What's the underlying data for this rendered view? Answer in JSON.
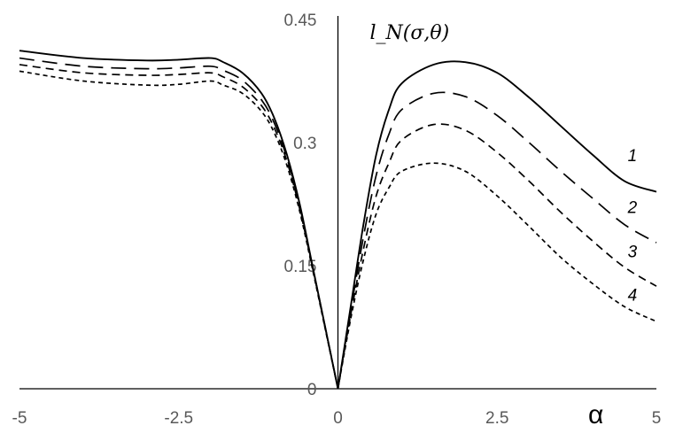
{
  "chart_data": {
    "type": "line",
    "title": "",
    "xlabel": "α",
    "ylabel": "l_N(σ,θ)",
    "xlim": [
      -5,
      5
    ],
    "ylim": [
      0,
      0.45
    ],
    "x_ticks": [
      "-5",
      "-2.5",
      "0",
      "2.5",
      "5"
    ],
    "y_ticks": [
      "0",
      "0.15",
      "0.3",
      "0.45"
    ],
    "grid": false,
    "series": [
      {
        "name": "1",
        "style": "solid",
        "x": [
          -5,
          -4,
          -3,
          -2.5,
          -2,
          -1.8,
          -1.5,
          -1.2,
          -1,
          -0.8,
          -0.6,
          -0.4,
          -0.2,
          0,
          0.2,
          0.4,
          0.6,
          0.8,
          1,
          1.5,
          2,
          2.5,
          3,
          3.5,
          4,
          4.5,
          5
        ],
        "y": [
          0.412,
          0.403,
          0.4,
          0.401,
          0.403,
          0.398,
          0.385,
          0.36,
          0.33,
          0.285,
          0.225,
          0.15,
          0.075,
          0.0,
          0.1,
          0.2,
          0.285,
          0.34,
          0.372,
          0.395,
          0.398,
          0.385,
          0.355,
          0.32,
          0.285,
          0.253,
          0.24
        ]
      },
      {
        "name": "2",
        "style": "long-dash",
        "x": [
          -5,
          -4,
          -3,
          -2.5,
          -2,
          -1.8,
          -1.5,
          -1.2,
          -1,
          -0.8,
          -0.6,
          -0.4,
          -0.2,
          0,
          0.2,
          0.4,
          0.6,
          0.8,
          1,
          1.5,
          2,
          2.5,
          3,
          3.5,
          4,
          4.5,
          5
        ],
        "y": [
          0.403,
          0.393,
          0.39,
          0.391,
          0.393,
          0.388,
          0.376,
          0.352,
          0.324,
          0.281,
          0.222,
          0.149,
          0.075,
          0.0,
          0.095,
          0.185,
          0.26,
          0.31,
          0.34,
          0.36,
          0.356,
          0.333,
          0.3,
          0.265,
          0.232,
          0.2,
          0.178
        ]
      },
      {
        "name": "3",
        "style": "dash",
        "x": [
          -5,
          -4,
          -3,
          -2.5,
          -2,
          -1.8,
          -1.5,
          -1.2,
          -1,
          -0.8,
          -0.6,
          -0.4,
          -0.2,
          0,
          0.2,
          0.4,
          0.6,
          0.8,
          1,
          1.5,
          2,
          2.5,
          3,
          3.5,
          4,
          4.5,
          5
        ],
        "y": [
          0.395,
          0.385,
          0.382,
          0.383,
          0.385,
          0.38,
          0.368,
          0.345,
          0.318,
          0.277,
          0.219,
          0.148,
          0.074,
          0.0,
          0.09,
          0.17,
          0.235,
          0.275,
          0.303,
          0.322,
          0.315,
          0.288,
          0.253,
          0.215,
          0.18,
          0.148,
          0.125
        ]
      },
      {
        "name": "4",
        "style": "short-dash",
        "x": [
          -5,
          -4,
          -3,
          -2.5,
          -2,
          -1.8,
          -1.5,
          -1.2,
          -1,
          -0.8,
          -0.6,
          -0.4,
          -0.2,
          0,
          0.2,
          0.4,
          0.6,
          0.8,
          1,
          1.5,
          2,
          2.5,
          3,
          3.5,
          4,
          4.5,
          5
        ],
        "y": [
          0.387,
          0.375,
          0.37,
          0.371,
          0.375,
          0.37,
          0.36,
          0.338,
          0.312,
          0.272,
          0.216,
          0.146,
          0.073,
          0.0,
          0.085,
          0.157,
          0.213,
          0.245,
          0.265,
          0.275,
          0.265,
          0.235,
          0.198,
          0.16,
          0.128,
          0.1,
          0.082
        ]
      }
    ],
    "curve_labels": [
      {
        "text": "1",
        "x": 4.55,
        "y": 0.285
      },
      {
        "text": "2",
        "x": 4.55,
        "y": 0.222
      },
      {
        "text": "3",
        "x": 4.55,
        "y": 0.168
      },
      {
        "text": "4",
        "x": 4.55,
        "y": 0.115
      }
    ]
  }
}
